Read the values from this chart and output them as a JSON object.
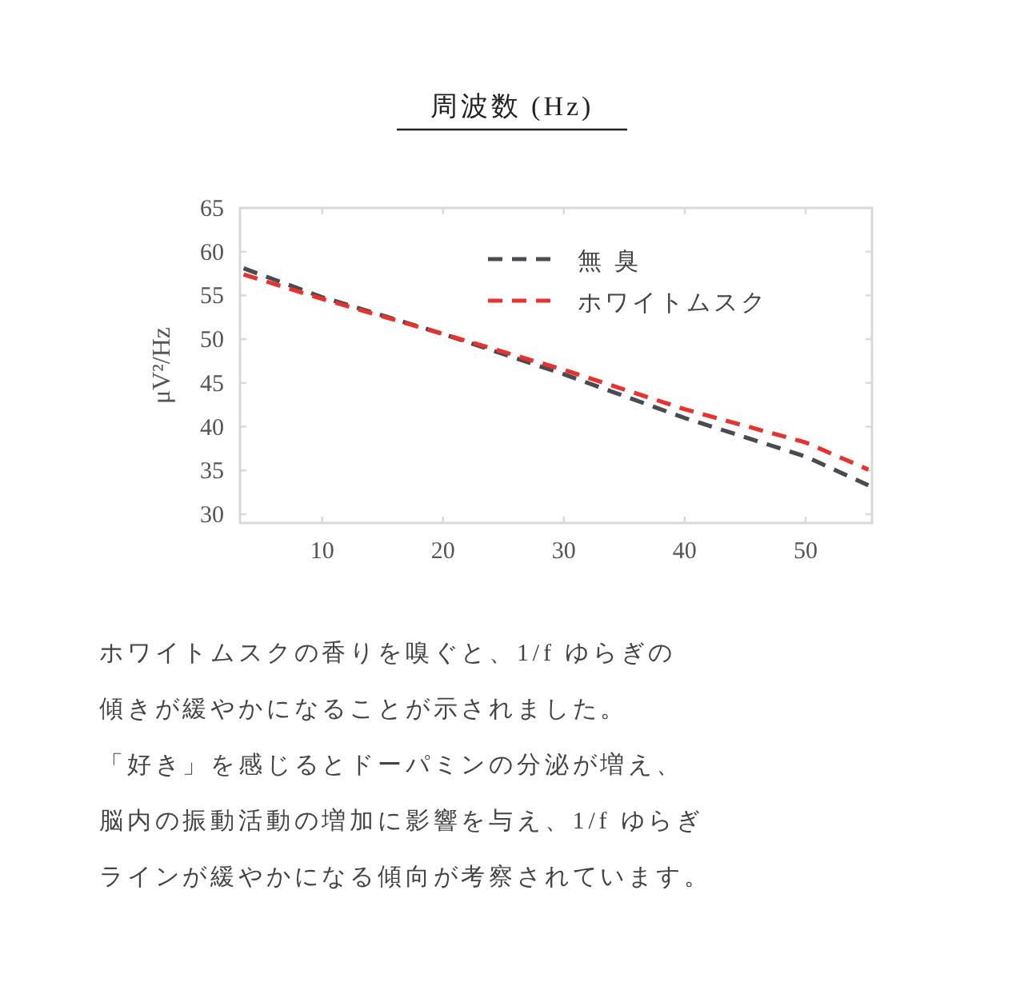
{
  "chart_data": {
    "type": "line",
    "title": "周波数 (Hz)",
    "ylabel": "μV²/Hz",
    "xlim": [
      3.2,
      55.5
    ],
    "ylim": [
      29,
      65
    ],
    "xticks": [
      10,
      20,
      30,
      40,
      50
    ],
    "yticks": [
      30,
      35,
      40,
      45,
      50,
      55,
      60,
      65
    ],
    "line_style": "dashed",
    "legend": "top right",
    "series": [
      {
        "name": "無 臭",
        "color": "#4a4a52",
        "x": [
          3.5,
          10,
          20,
          30,
          40,
          50,
          55.2
        ],
        "values": [
          58.1,
          54.8,
          50.6,
          46.0,
          41.0,
          36.6,
          33.3
        ]
      },
      {
        "name": "ホワイトムスク",
        "color": "#e8322f",
        "x": [
          3.5,
          10,
          20,
          30,
          40,
          50,
          55.2
        ],
        "values": [
          57.4,
          54.6,
          50.6,
          46.5,
          42.0,
          38.2,
          35.1
        ]
      }
    ],
    "annotations": [
      "ホワイトムスクの香りを嗅ぐと、1/f ゆらぎの",
      "傾きが緩やかになることが示されました。",
      "「好き」を感じるとドーパミンの分泌が増え、",
      "脳内の振動活動の増加に影響を与え、1/f ゆらぎ",
      "ラインが緩やかになる傾向が考察されています。"
    ]
  }
}
